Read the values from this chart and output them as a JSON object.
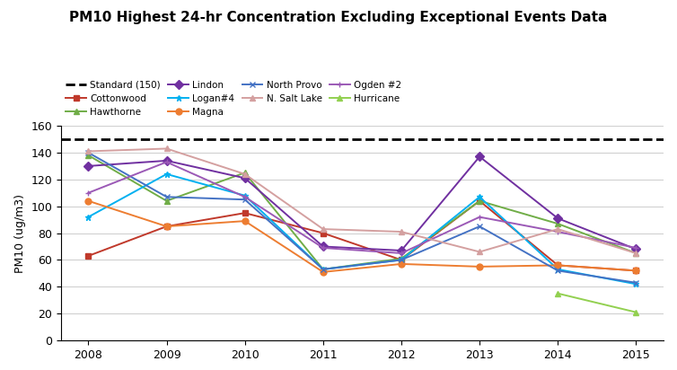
{
  "title": "PM10 Highest 24-hr Concentration Excluding Exceptional Events Data",
  "ylabel": "PM10 (ug/m3)",
  "years": [
    2008,
    2009,
    2010,
    2011,
    2012,
    2013,
    2014,
    2015
  ],
  "standard": 150,
  "series": {
    "Cottonwood": {
      "values": [
        63,
        85,
        95,
        80,
        60,
        104,
        56,
        52
      ],
      "color": "#c0392b",
      "marker": "s"
    },
    "Hawthorne": {
      "values": [
        138,
        104,
        125,
        53,
        61,
        104,
        87,
        65
      ],
      "color": "#70ad47",
      "marker": "^"
    },
    "Lindon": {
      "values": [
        130,
        134,
        121,
        70,
        67,
        137,
        91,
        68
      ],
      "color": "#7030a0",
      "marker": "D"
    },
    "Logan#4": {
      "values": [
        92,
        124,
        108,
        53,
        60,
        107,
        53,
        42
      ],
      "color": "#00b0f0",
      "marker": "*"
    },
    "Magna": {
      "values": [
        104,
        85,
        89,
        51,
        57,
        55,
        56,
        52
      ],
      "color": "#ed7d31",
      "marker": "o"
    },
    "North Provo": {
      "values": [
        140,
        107,
        105,
        53,
        60,
        85,
        52,
        43
      ],
      "color": "#4472c4",
      "marker": "x"
    },
    "Ogden #2": {
      "values": [
        110,
        133,
        107,
        69,
        65,
        92,
        81,
        69
      ],
      "color": "#9b59b6",
      "marker": "+"
    },
    "N. Salt Lake": {
      "values": [
        141,
        143,
        124,
        83,
        81,
        66,
        83,
        65
      ],
      "color": "#d4a0a0",
      "marker": "^"
    },
    "Hurricane": {
      "values": [
        null,
        null,
        null,
        null,
        null,
        null,
        35,
        21
      ],
      "color": "#92d050",
      "marker": "^"
    }
  },
  "legend_rows": [
    [
      "Standard (150)",
      "Cottonwood",
      "Hawthorne",
      "Lindon"
    ],
    [
      "Logan#4",
      "Magna",
      "North Provo",
      "N. Salt Lake"
    ],
    [
      "Ogden #2",
      "Hurricane",
      "",
      ""
    ]
  ],
  "ylim": [
    0,
    160
  ],
  "yticks": [
    0,
    20,
    40,
    60,
    80,
    100,
    120,
    140,
    160
  ],
  "background_color": "#ffffff",
  "grid_color": "#d0d0d0",
  "title_fontsize": 11,
  "legend_fontsize": 7.5,
  "axis_fontsize": 9
}
